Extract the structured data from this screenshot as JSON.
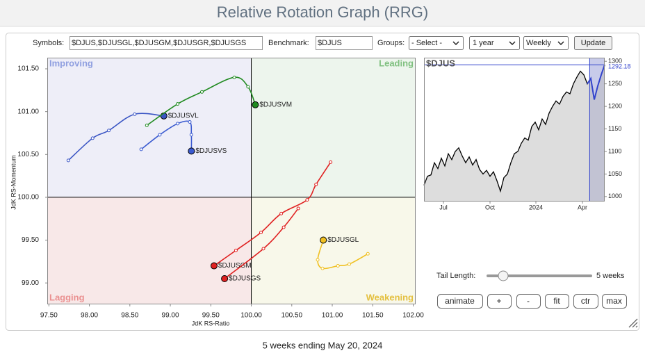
{
  "header": {
    "title": "Relative Rotation Graph (RRG)"
  },
  "controls": {
    "symbols_label": "Symbols:",
    "symbols": "$DJUS,$DJUSGL,$DJUSGM,$DJUSGR,$DJUSGS",
    "benchmark_label": "Benchmark:",
    "benchmark": "$DJUS",
    "groups_label": "Groups:",
    "groups": "- Select -",
    "period": "1 year",
    "frequency": "Weekly",
    "update": "Update",
    "tail_label": "Tail Length:",
    "tail_value": "5 weeks",
    "buttons": [
      "animate",
      "+",
      "-",
      "fit",
      "ctr",
      "max"
    ]
  },
  "chart_data": [
    {
      "type": "scatter",
      "x_label": "JdK RS-Ratio",
      "y_label": "JdK RS-Momentum",
      "quadrants": {
        "improving": "Improving",
        "leading": "Leading",
        "lagging": "Lagging",
        "weakening": "Weakening"
      },
      "xlim": [
        97.48,
        102.03
      ],
      "ylim": [
        98.75,
        101.63
      ],
      "xticks": [
        {
          "value": 97.5,
          "label": "97.50"
        },
        {
          "value": 98,
          "label": "98.00"
        },
        {
          "value": 98.5,
          "label": "98.50"
        },
        {
          "value": 99,
          "label": "99.00"
        },
        {
          "value": 99.5,
          "label": "99.50"
        },
        {
          "value": 100,
          "label": "100.00"
        },
        {
          "value": 100.5,
          "label": "100.50"
        },
        {
          "value": 101,
          "label": "101.00"
        },
        {
          "value": 101.5,
          "label": "101.50"
        },
        {
          "value": 102,
          "label": "102.00"
        }
      ],
      "yticks": [
        {
          "value": 99,
          "label": "99.00"
        },
        {
          "value": 99.5,
          "label": "99.50"
        },
        {
          "value": 100,
          "label": "100.00"
        },
        {
          "value": 100.5,
          "label": "100.50"
        },
        {
          "value": 101,
          "label": "101.00"
        },
        {
          "value": 101.5,
          "label": "101.50"
        }
      ],
      "series": [
        {
          "name": "$DJUSVL",
          "color": "#3a55c4",
          "x": [
            97.74,
            98.04,
            98.24,
            98.56,
            98.92
          ],
          "y": [
            100.43,
            100.69,
            100.78,
            100.97,
            100.95
          ]
        },
        {
          "name": "$DJUSVS",
          "color": "#3a5ad0",
          "x": [
            98.64,
            98.87,
            99.09,
            99.24,
            99.26,
            99.26
          ],
          "y": [
            100.56,
            100.73,
            100.86,
            100.88,
            100.73,
            100.54
          ]
        },
        {
          "name": "$DJUSVM",
          "color": "#1f8a1f",
          "x": [
            98.71,
            99.09,
            99.39,
            99.79,
            99.96,
            100.05
          ],
          "y": [
            100.84,
            101.09,
            101.23,
            101.4,
            101.29,
            101.08
          ]
        },
        {
          "name": "$DJUSGM",
          "color": "#e02020",
          "x": [
            100.98,
            100.8,
            100.69,
            100.37,
            100.12,
            99.81,
            99.54
          ],
          "y": [
            100.41,
            100.15,
            99.97,
            99.81,
            99.59,
            99.38,
            99.2
          ]
        },
        {
          "name": "$DJUSGS",
          "color": "#e02020",
          "x": [
            100.58,
            100.4,
            100.15,
            99.67
          ],
          "y": [
            99.87,
            99.65,
            99.4,
            99.05
          ]
        },
        {
          "name": "$DJUSGL",
          "color": "#f0c020",
          "x": [
            101.44,
            101.21,
            101.07,
            100.88,
            100.82,
            100.89
          ],
          "y": [
            99.34,
            99.22,
            99.2,
            99.17,
            99.27,
            99.5
          ]
        }
      ]
    },
    {
      "type": "line",
      "title": "$DJUS",
      "color": "#000000",
      "xlim": [
        0,
        52
      ],
      "ylim": [
        989,
        1308
      ],
      "xticks": [
        {
          "value": 5.6,
          "label": "Jul"
        },
        {
          "value": 19,
          "label": "Oct"
        },
        {
          "value": 32.2,
          "label": "2024"
        },
        {
          "value": 45.6,
          "label": "Apr"
        }
      ],
      "yticks": [
        1000,
        1050,
        1100,
        1150,
        1200,
        1250,
        1300
      ],
      "values": [
        1025,
        1045,
        1048,
        1075,
        1062,
        1085,
        1068,
        1095,
        1082,
        1100,
        1108,
        1090,
        1075,
        1088,
        1070,
        1082,
        1060,
        1050,
        1058,
        1045,
        1055,
        1035,
        1012,
        1042,
        1050,
        1075,
        1095,
        1100,
        1118,
        1130,
        1125,
        1155,
        1165,
        1148,
        1172,
        1160,
        1185,
        1200,
        1212,
        1205,
        1222,
        1232,
        1228,
        1250,
        1265,
        1278,
        1270,
        1250,
        1262,
        1215,
        1245,
        1270,
        1292.18
      ]
    }
  ],
  "footer": "5 weeks ending May 20, 2024"
}
